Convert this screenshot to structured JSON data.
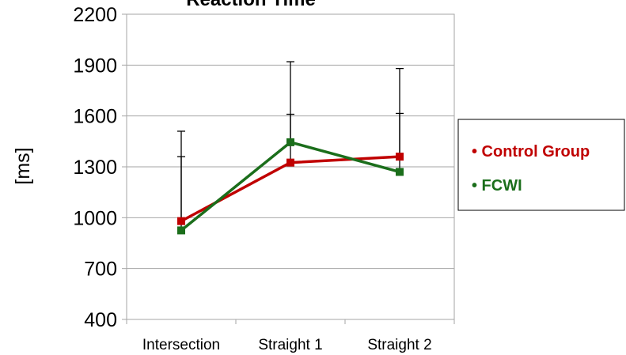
{
  "chart_data": {
    "type": "line",
    "title": "Reaction Time",
    "xlabel": "",
    "ylabel": "[ms]",
    "categories": [
      "Intersection",
      "Straight 1",
      "Straight 2"
    ],
    "ylim": [
      400,
      2200
    ],
    "yticks": [
      400,
      700,
      1000,
      1300,
      1600,
      1900,
      2200
    ],
    "grid": "horizontal",
    "legend_position": "right",
    "series": [
      {
        "name": "Control Group",
        "color": "#c00000",
        "values": [
          980,
          1325,
          1360
        ],
        "error_upper": [
          1360,
          1610,
          1615
        ]
      },
      {
        "name": "FCWI",
        "color": "#1b6e1b",
        "values": [
          925,
          1445,
          1270
        ],
        "error_upper": [
          1510,
          1920,
          1880
        ]
      }
    ]
  }
}
